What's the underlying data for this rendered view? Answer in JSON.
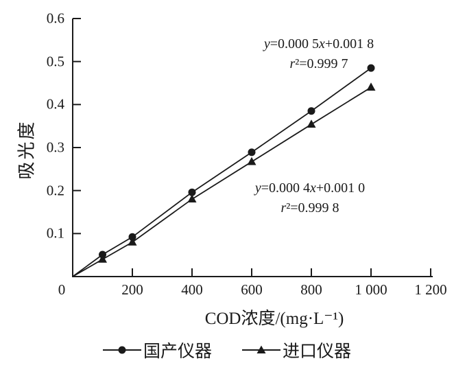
{
  "figure": {
    "ink_color": "#1a1a1a",
    "background": "#ffffff"
  },
  "chart_data": {
    "type": "line",
    "title": "",
    "xlabel": "COD浓度/(mg·L⁻¹)",
    "ylabel": "吸光度",
    "xlim": [
      0,
      1200
    ],
    "ylim": [
      0,
      0.6
    ],
    "x_ticks": [
      0,
      200,
      400,
      600,
      800,
      1000,
      1200
    ],
    "x_tick_labels": [
      "0",
      "200",
      "400",
      "600",
      "800",
      "1 000",
      "1 200"
    ],
    "y_ticks": [
      0.1,
      0.2,
      0.3,
      0.4,
      0.5,
      0.6
    ],
    "y_tick_labels": [
      "0.1",
      "0.2",
      "0.3",
      "0.4",
      "0.5",
      "0.6"
    ],
    "grid": false,
    "legend_position": "bottom",
    "series": [
      {
        "name": "国产仪器",
        "marker": "circle",
        "color": "#1a1a1a",
        "x": [
          0,
          100,
          200,
          400,
          600,
          800,
          1000
        ],
        "y": [
          0,
          0.051,
          0.092,
          0.196,
          0.289,
          0.385,
          0.485
        ],
        "fit_label": "y=0.000 5x+0.001 8",
        "r2_label": "r²=0.999 7"
      },
      {
        "name": "进口仪器",
        "marker": "triangle",
        "color": "#1a1a1a",
        "x": [
          0,
          100,
          200,
          400,
          600,
          800,
          1000
        ],
        "y": [
          0,
          0.04,
          0.08,
          0.18,
          0.267,
          0.354,
          0.44
        ],
        "fit_label": "y=0.000 4x+0.001 0",
        "r2_label": "r²=0.999 8"
      }
    ]
  }
}
